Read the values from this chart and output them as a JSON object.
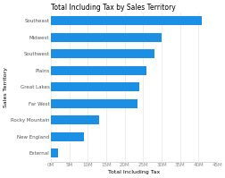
{
  "title": "Total Including Tax by Sales Territory",
  "xlabel": "Total Including Tax",
  "ylabel": "Sales Territory",
  "categories": [
    "External",
    "New England",
    "Rocky Mountain",
    "Far West",
    "Great Lakes",
    "Plains",
    "Southwest",
    "Midwest",
    "Southeast"
  ],
  "values": [
    2000000,
    9000000,
    13000000,
    23500000,
    24000000,
    26000000,
    28000000,
    30000000,
    41000000
  ],
  "bar_color": "#1a8fe3",
  "background_color": "#ffffff",
  "xlim": [
    0,
    45000000
  ],
  "xticks": [
    0,
    5000000,
    10000000,
    15000000,
    20000000,
    25000000,
    30000000,
    35000000,
    40000000,
    45000000
  ],
  "xtick_labels": [
    "0M",
    "5M",
    "10M",
    "15M",
    "20M",
    "25M",
    "30M",
    "35M",
    "40M",
    "45M"
  ],
  "title_fontsize": 5.5,
  "label_fontsize": 4.5,
  "tick_fontsize": 4
}
